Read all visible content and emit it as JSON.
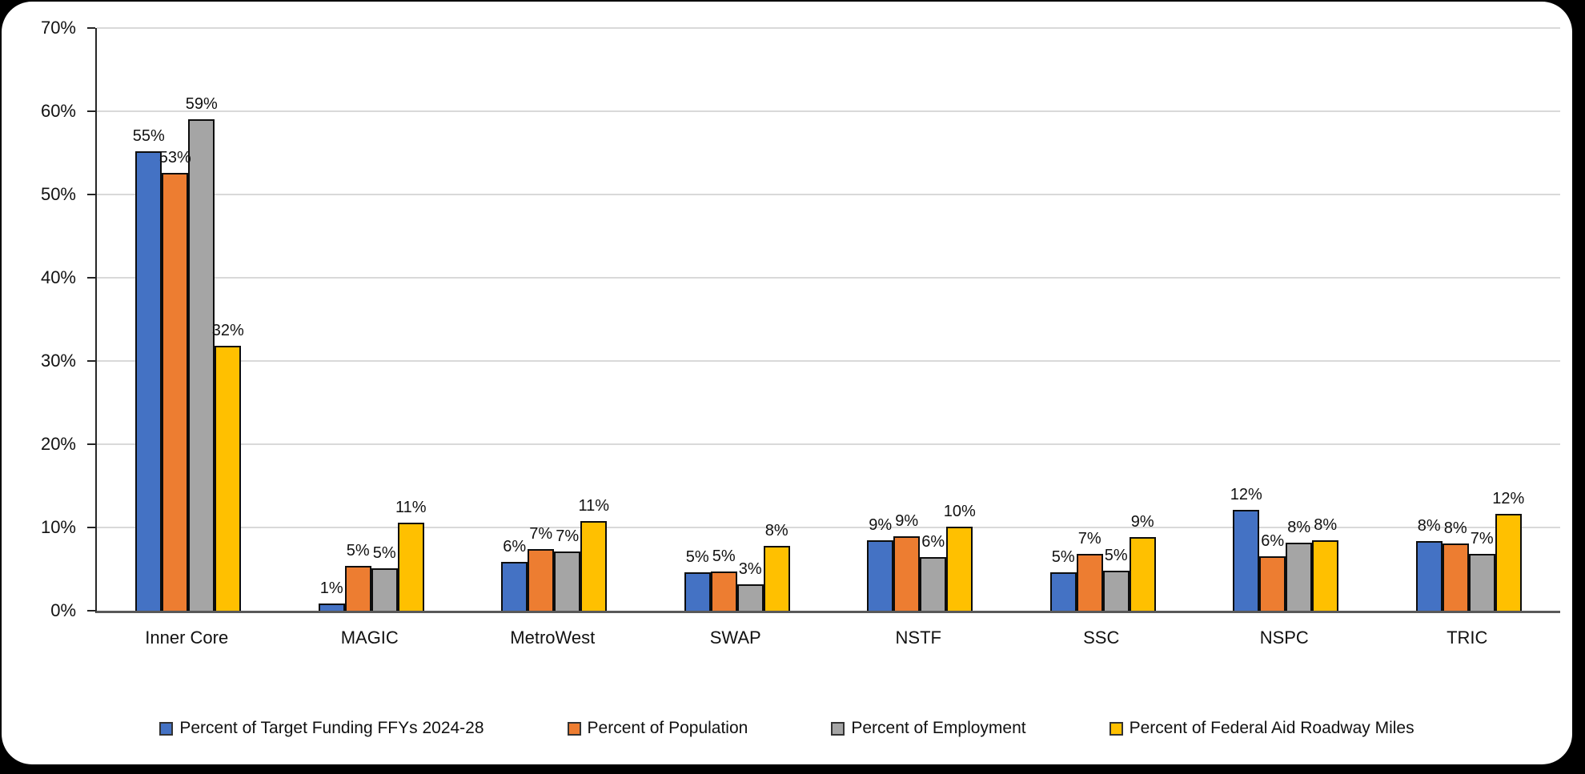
{
  "window": {
    "background_color": "#000000",
    "surface_color": "#ffffff"
  },
  "chart_data": {
    "type": "bar",
    "title": "",
    "xlabel": "",
    "ylabel": "",
    "grid": true,
    "gridline_color": "#d9d9d9",
    "legend_position": "bottom",
    "categories": [
      "Inner Core",
      "MAGIC",
      "MetroWest",
      "SWAP",
      "NSTF",
      "SSC",
      "NSPC",
      "TRIC"
    ],
    "series": [
      {
        "name": "Percent of Target Funding FFYs 2024-28",
        "color": "#4472C4",
        "values": [
          55,
          1,
          6,
          5,
          9,
          5,
          12,
          8
        ],
        "data_labels": [
          "55%",
          "1%",
          "6%",
          "5%",
          "9%",
          "5%",
          "12%",
          "8%"
        ],
        "display_heights": [
          55.2,
          0.9,
          5.9,
          4.6,
          8.5,
          4.6,
          12.1,
          8.4
        ]
      },
      {
        "name": "Percent of Population",
        "color": "#ED7D31",
        "values": [
          53,
          5,
          7,
          5,
          9,
          7,
          6,
          8
        ],
        "data_labels": [
          "53%",
          "5%",
          "7%",
          "5%",
          "9%",
          "7%",
          "6%",
          "8%"
        ],
        "display_heights": [
          52.6,
          5.4,
          7.4,
          4.7,
          8.9,
          6.8,
          6.5,
          8.1
        ]
      },
      {
        "name": "Percent of Employment",
        "color": "#A5A5A5",
        "values": [
          59,
          5,
          7,
          3,
          6,
          5,
          8,
          7
        ],
        "data_labels": [
          "59%",
          "5%",
          "7%",
          "3%",
          "6%",
          "5%",
          "8%",
          "7%"
        ],
        "display_heights": [
          59.0,
          5.1,
          7.1,
          3.2,
          6.4,
          4.8,
          8.2,
          6.8
        ]
      },
      {
        "name": "Percent of Federal Aid Roadway Miles",
        "color": "#FFC000",
        "values": [
          32,
          11,
          11,
          8,
          10,
          9,
          8,
          12
        ],
        "data_labels": [
          "32%",
          "11%",
          "11%",
          "8%",
          "10%",
          "9%",
          "8%",
          "12%"
        ],
        "display_heights": [
          31.8,
          10.6,
          10.8,
          7.8,
          10.1,
          8.8,
          8.5,
          11.6
        ]
      }
    ],
    "y_axis": {
      "min": 0,
      "max": 70,
      "step": 10,
      "ticks": [
        "0%",
        "10%",
        "20%",
        "30%",
        "40%",
        "50%",
        "60%",
        "70%"
      ]
    }
  }
}
